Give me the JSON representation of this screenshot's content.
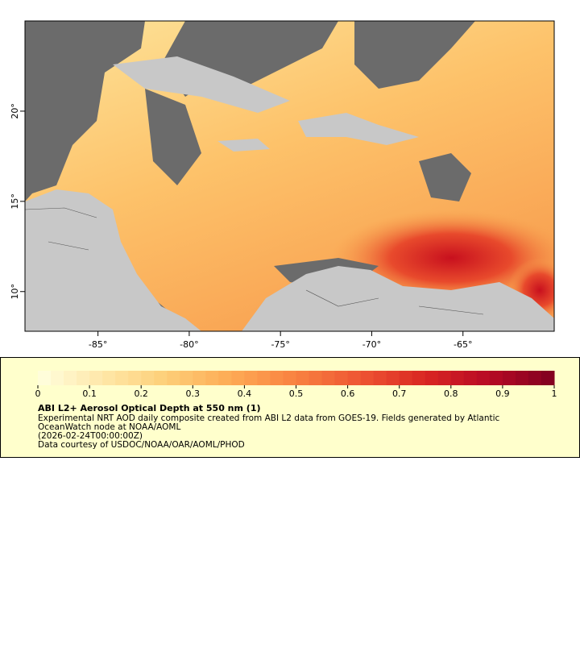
{
  "map": {
    "xlim": [
      -89,
      -60
    ],
    "ylim": [
      7.8,
      25
    ],
    "xticks": [
      {
        "value": -85,
        "label": "-85°"
      },
      {
        "value": -80,
        "label": "-80°"
      },
      {
        "value": -75,
        "label": "-75°"
      },
      {
        "value": -70,
        "label": "-70°"
      },
      {
        "value": -65,
        "label": "-65°"
      }
    ],
    "yticks": [
      {
        "value": 10,
        "label": "10°"
      },
      {
        "value": 15,
        "label": "15°"
      },
      {
        "value": 20,
        "label": "20°"
      }
    ]
  },
  "colorbar": {
    "range": [
      0,
      1
    ],
    "ticks": [
      0,
      0.1,
      0.2,
      0.3,
      0.4,
      0.5,
      0.6,
      0.7,
      0.8,
      0.9,
      1
    ],
    "colors": [
      "#ffffe0",
      "#fee7a8",
      "#fdce77",
      "#fdaa55",
      "#f88140",
      "#ee5533",
      "#d92622",
      "#b60a25",
      "#80001f"
    ]
  },
  "legend": {
    "title": "ABI L2+ Aerosol Optical Depth at 550 nm (1)",
    "lines": [
      "Experimental NRT AOD daily composite created from ABI L2 data from GOES-19. Fields generated by Atlantic",
      "OceanWatch node at NOAA/AOML",
      "(2026-02-24T00:00:00Z)",
      "Data courtesy of USDOC/NOAA/OAR/AOML/PHOD"
    ]
  }
}
